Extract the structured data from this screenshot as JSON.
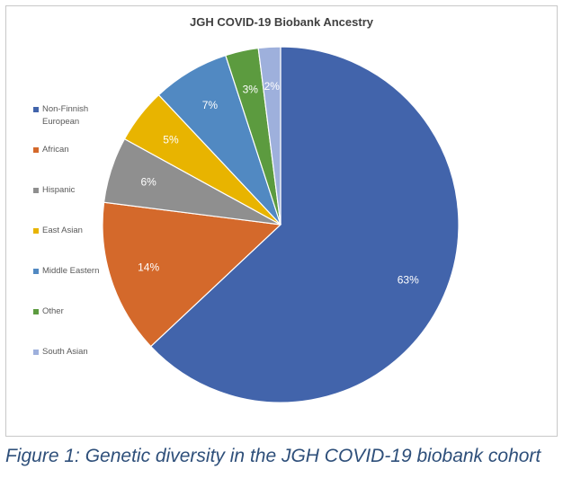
{
  "chart_data": {
    "type": "pie",
    "title": "JGH COVID-19 Biobank Ancestry",
    "slices": [
      {
        "label": "Non-Finnish European",
        "value": 63,
        "display": "63%",
        "color": "#4264ab"
      },
      {
        "label": "African",
        "value": 14,
        "display": "14%",
        "color": "#d4692b"
      },
      {
        "label": "Hispanic",
        "value": 6,
        "display": "6%",
        "color": "#8f8f8f"
      },
      {
        "label": "East Asian",
        "value": 5,
        "display": "5%",
        "color": "#e8b400"
      },
      {
        "label": "Middle Eastern",
        "value": 7,
        "display": "7%",
        "color": "#5189c2"
      },
      {
        "label": "Other",
        "value": 3,
        "display": "3%",
        "color": "#5c9b3f"
      },
      {
        "label": "South Asian",
        "value": 2,
        "display": "2%",
        "color": "#9eb0dc"
      }
    ],
    "start_angle_deg": 0,
    "direction": "clockwise",
    "legend_position": "left"
  },
  "caption": "Figure 1: Genetic diversity in the JGH COVID-19 biobank cohort"
}
